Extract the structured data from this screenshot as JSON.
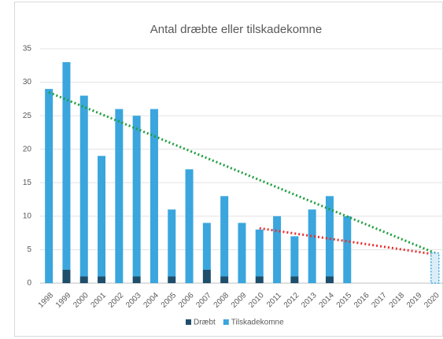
{
  "chart_data": {
    "type": "stacked_bar",
    "title": "Antal dræbte eller tilskadekomne",
    "categories": [
      "1998",
      "1999",
      "2000",
      "2001",
      "2002",
      "2003",
      "2004",
      "2005",
      "2006",
      "2007",
      "2008",
      "2009",
      "2010",
      "2011",
      "2012",
      "2013",
      "2014",
      "2015",
      "2016",
      "2017",
      "2018",
      "2019",
      "2020"
    ],
    "series": [
      {
        "name": "Dræbt",
        "color": "#1f4e6b",
        "values": [
          0,
          2,
          1,
          1,
          0,
          1,
          0,
          1,
          0,
          2,
          1,
          0,
          1,
          0,
          1,
          0,
          1,
          0,
          null,
          null,
          null,
          null,
          null
        ]
      },
      {
        "name": "Tilskadekomne",
        "color": "#3aa6dd",
        "values": [
          29,
          31,
          27,
          18,
          26,
          24,
          26,
          10,
          17,
          7,
          12,
          9,
          7,
          10,
          6,
          11,
          12,
          10,
          null,
          null,
          null,
          null,
          null
        ]
      }
    ],
    "trendlines": [
      {
        "color": "#1e9e3e",
        "categories": [
          "1998",
          "2020"
        ],
        "values": [
          28.5,
          4.5
        ]
      },
      {
        "color": "#e8312f",
        "categories": [
          "2010",
          "2020"
        ],
        "values": [
          8.2,
          4.3
        ]
      }
    ],
    "highlight": {
      "category": "2020",
      "value": 4.5,
      "color": "#3aa6dd"
    },
    "ylim": [
      0,
      35
    ],
    "yticks": [
      0,
      5,
      10,
      15,
      20,
      25,
      30,
      35
    ],
    "grid": true,
    "legend": "bottom"
  }
}
